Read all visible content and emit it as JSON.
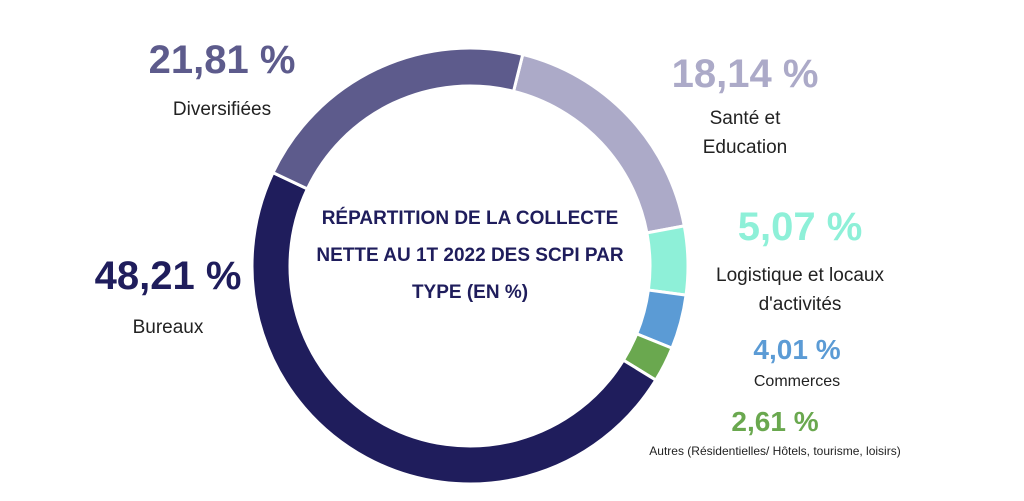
{
  "chart_data": {
    "type": "donut",
    "title": "RÉPARTITION DE LA COLLECTE NETTE AU 1T 2022 DES SCPI PAR TYPE (EN %)",
    "categories": [
      "Santé et Education",
      "Logistique et locaux d'activités",
      "Commerces",
      "Autres (Résidentielles/ Hôtels, tourisme, loisirs)",
      "Bureaux",
      "Diversifiées"
    ],
    "values": [
      18.14,
      5.07,
      4.01,
      2.61,
      48.21,
      21.81
    ],
    "value_labels": [
      "18,14 %",
      "5,07 %",
      "4,01 %",
      "2,61 %",
      "48,21 %",
      "21,81 %"
    ],
    "colors": [
      "#acaac8",
      "#8ef0d8",
      "#5b9bd5",
      "#6aa84f",
      "#1f1d5c",
      "#5d5b8c"
    ]
  }
}
